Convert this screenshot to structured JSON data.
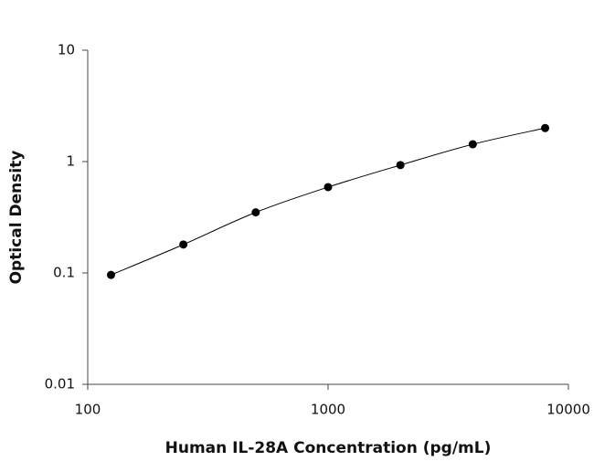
{
  "chart_data": {
    "type": "scatter",
    "x_label": "Human IL-28A Concentration (pg/mL)",
    "y_label": "Optical Density",
    "x": [
      125,
      250,
      500,
      1000,
      2000,
      4000,
      8000
    ],
    "series": [
      {
        "values": [
          0.096,
          0.18,
          0.35,
          0.59,
          0.93,
          1.43,
          2.0
        ],
        "color": "#000000"
      }
    ],
    "xlim": [
      100,
      10000
    ],
    "xticks": [
      100,
      1000,
      10000
    ],
    "ylim": [
      0.01,
      10
    ],
    "yticks": [
      0.01,
      0.1,
      1,
      10
    ],
    "x_log": true,
    "y_log": true,
    "fit_line": true
  }
}
